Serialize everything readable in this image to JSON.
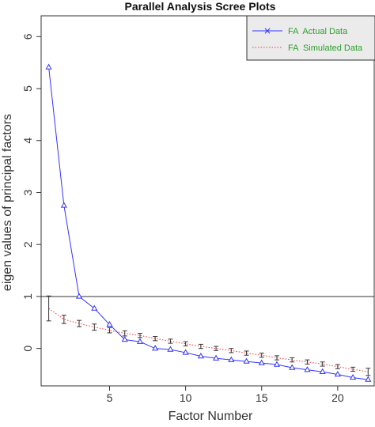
{
  "chart_data": {
    "type": "line",
    "title": "Parallel Analysis Scree Plots",
    "xlabel": "Factor Number",
    "ylabel": "eigen values of principal factors",
    "xlim": [
      0.5,
      22.4
    ],
    "ylim": [
      -0.72,
      6.4
    ],
    "xticks": [
      5,
      10,
      15,
      20
    ],
    "yticks": [
      0,
      1,
      2,
      3,
      4,
      5,
      6
    ],
    "reference_line": 1,
    "legend_position": "top-right",
    "x": [
      1,
      2,
      3,
      4,
      5,
      6,
      7,
      8,
      9,
      10,
      11,
      12,
      13,
      14,
      15,
      16,
      17,
      18,
      19,
      20,
      21,
      22
    ],
    "series": [
      {
        "name": "FA  Actual Data",
        "color": "#3333ff",
        "style": "solid",
        "marker": "triangle",
        "values": [
          5.41,
          2.75,
          1.0,
          0.77,
          0.46,
          0.17,
          0.13,
          0.0,
          -0.02,
          -0.08,
          -0.15,
          -0.19,
          -0.22,
          -0.25,
          -0.28,
          -0.31,
          -0.37,
          -0.41,
          -0.45,
          -0.5,
          -0.56,
          -0.6
        ]
      },
      {
        "name": "FA  Simulated Data",
        "color": "#ff3333",
        "style": "dotted",
        "values": [
          0.77,
          0.56,
          0.48,
          0.41,
          0.35,
          0.29,
          0.25,
          0.19,
          0.14,
          0.09,
          0.04,
          0.0,
          -0.04,
          -0.09,
          -0.13,
          -0.18,
          -0.22,
          -0.26,
          -0.3,
          -0.35,
          -0.4,
          -0.45
        ],
        "error": [
          0.24,
          0.08,
          0.06,
          0.06,
          0.05,
          0.05,
          0.04,
          0.04,
          0.04,
          0.04,
          0.04,
          0.04,
          0.04,
          0.04,
          0.04,
          0.04,
          0.04,
          0.04,
          0.04,
          0.04,
          0.04,
          0.07
        ]
      }
    ]
  }
}
